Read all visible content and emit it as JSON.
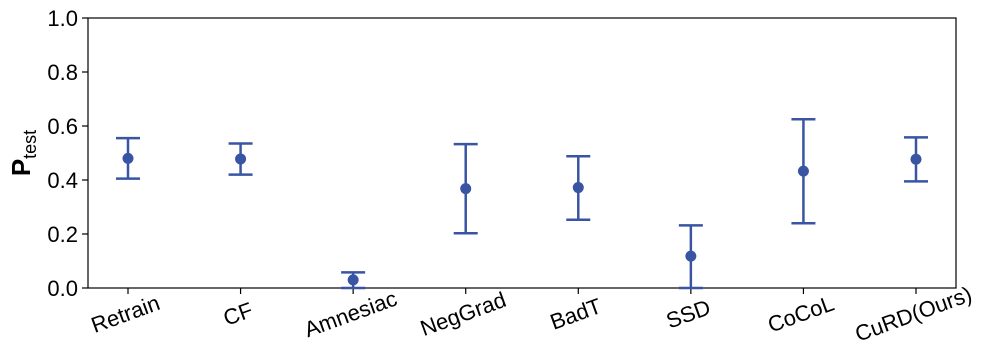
{
  "chart_data": {
    "type": "scatter",
    "style": "errorbar",
    "color": "#3a54a4",
    "ylabel": "P",
    "ylabel_subscript": "test",
    "ylim": [
      0.0,
      1.0
    ],
    "yticks": [
      "0.0",
      "0.2",
      "0.4",
      "0.6",
      "0.8",
      "1.0"
    ],
    "categories": [
      "Retrain",
      "CF",
      "Amnesiac",
      "NegGrad",
      "BadT",
      "SSD",
      "CoCoL",
      "CuRD(Ours)"
    ],
    "points": [
      {
        "label": "Retrain",
        "mean": 0.48,
        "lower": 0.405,
        "upper": 0.555
      },
      {
        "label": "CF",
        "mean": 0.478,
        "lower": 0.42,
        "upper": 0.535
      },
      {
        "label": "Amnesiac",
        "mean": 0.03,
        "lower": 0.0,
        "upper": 0.058
      },
      {
        "label": "NegGrad",
        "mean": 0.368,
        "lower": 0.203,
        "upper": 0.533
      },
      {
        "label": "BadT",
        "mean": 0.372,
        "lower": 0.253,
        "upper": 0.488
      },
      {
        "label": "SSD",
        "mean": 0.118,
        "lower": 0.0,
        "upper": 0.232
      },
      {
        "label": "CoCoL",
        "mean": 0.433,
        "lower": 0.24,
        "upper": 0.625
      },
      {
        "label": "CuRD(Ours)",
        "mean": 0.477,
        "lower": 0.395,
        "upper": 0.558
      }
    ],
    "grid": false,
    "legend": "none"
  }
}
